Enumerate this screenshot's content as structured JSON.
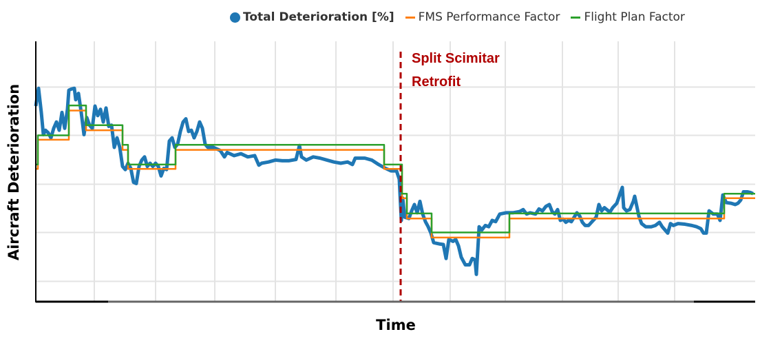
{
  "chart_data": {
    "type": "line",
    "title": "",
    "xlabel": "Time",
    "ylabel": "Aircraft Deterioration",
    "xlim": [
      0,
      1045
    ],
    "ylim": [
      -32,
      378
    ],
    "x_gridlines": [
      85,
      174,
      260,
      348,
      436,
      519,
      602,
      682,
      765,
      846,
      928
    ],
    "y_gridlines": [
      0,
      77,
      153,
      230,
      306
    ],
    "tick_labels_shown": false,
    "grid": true,
    "legend_position": "top-right",
    "annotation": {
      "lines": [
        "Split Scimitar",
        "Retrofit"
      ],
      "x": 530,
      "color": "#b00000",
      "style": "dashed vertical line"
    },
    "series": [
      {
        "name": "Total Deterioration [%]",
        "color": "#1f77b4",
        "points": [
          [
            0,
            276
          ],
          [
            4,
            304
          ],
          [
            8,
            266
          ],
          [
            11,
            231
          ],
          [
            14,
            238
          ],
          [
            18,
            234
          ],
          [
            22,
            226
          ],
          [
            26,
            241
          ],
          [
            30,
            251
          ],
          [
            34,
            238
          ],
          [
            38,
            266
          ],
          [
            42,
            241
          ],
          [
            46,
            271
          ],
          [
            48,
            301
          ],
          [
            52,
            303
          ],
          [
            56,
            304
          ],
          [
            58,
            286
          ],
          [
            62,
            296
          ],
          [
            66,
            266
          ],
          [
            70,
            231
          ],
          [
            74,
            258
          ],
          [
            78,
            246
          ],
          [
            82,
            241
          ],
          [
            86,
            276
          ],
          [
            90,
            261
          ],
          [
            94,
            271
          ],
          [
            98,
            251
          ],
          [
            102,
            273
          ],
          [
            106,
            244
          ],
          [
            110,
            246
          ],
          [
            114,
            211
          ],
          [
            118,
            226
          ],
          [
            122,
            211
          ],
          [
            126,
            181
          ],
          [
            130,
            176
          ],
          [
            134,
            186
          ],
          [
            138,
            178
          ],
          [
            142,
            156
          ],
          [
            146,
            154
          ],
          [
            150,
            181
          ],
          [
            154,
            191
          ],
          [
            158,
            196
          ],
          [
            162,
            181
          ],
          [
            166,
            186
          ],
          [
            170,
            181
          ],
          [
            174,
            186
          ],
          [
            178,
            181
          ],
          [
            182,
            166
          ],
          [
            186,
            178
          ],
          [
            190,
            176
          ],
          [
            194,
            221
          ],
          [
            198,
            226
          ],
          [
            202,
            211
          ],
          [
            206,
            216
          ],
          [
            210,
            236
          ],
          [
            214,
            251
          ],
          [
            218,
            256
          ],
          [
            222,
            236
          ],
          [
            226,
            238
          ],
          [
            230,
            226
          ],
          [
            234,
            236
          ],
          [
            238,
            251
          ],
          [
            242,
            241
          ],
          [
            246,
            216
          ],
          [
            250,
            211
          ],
          [
            258,
            211
          ],
          [
            268,
            206
          ],
          [
            274,
            196
          ],
          [
            278,
            203
          ],
          [
            288,
            198
          ],
          [
            298,
            201
          ],
          [
            308,
            196
          ],
          [
            318,
            198
          ],
          [
            324,
            183
          ],
          [
            328,
            186
          ],
          [
            338,
            188
          ],
          [
            348,
            191
          ],
          [
            358,
            190
          ],
          [
            368,
            190
          ],
          [
            378,
            192
          ],
          [
            383,
            214
          ],
          [
            386,
            196
          ],
          [
            393,
            191
          ],
          [
            403,
            196
          ],
          [
            413,
            194
          ],
          [
            423,
            191
          ],
          [
            433,
            188
          ],
          [
            443,
            186
          ],
          [
            453,
            188
          ],
          [
            460,
            184
          ],
          [
            464,
            194
          ],
          [
            478,
            194
          ],
          [
            488,
            191
          ],
          [
            498,
            184
          ],
          [
            508,
            178
          ],
          [
            516,
            174
          ],
          [
            524,
            174
          ],
          [
            528,
            161
          ],
          [
            531,
            96
          ],
          [
            533,
            131
          ],
          [
            536,
            101
          ],
          [
            542,
            99
          ],
          [
            546,
            111
          ],
          [
            550,
            121
          ],
          [
            554,
            108
          ],
          [
            558,
            126
          ],
          [
            562,
            106
          ],
          [
            566,
            94
          ],
          [
            570,
            86
          ],
          [
            574,
            76
          ],
          [
            578,
            61
          ],
          [
            586,
            59
          ],
          [
            592,
            58
          ],
          [
            596,
            36
          ],
          [
            600,
            66
          ],
          [
            606,
            63
          ],
          [
            610,
            66
          ],
          [
            614,
            56
          ],
          [
            618,
            38
          ],
          [
            624,
            26
          ],
          [
            630,
            26
          ],
          [
            634,
            36
          ],
          [
            638,
            34
          ],
          [
            640,
            11
          ],
          [
            644,
            86
          ],
          [
            648,
            81
          ],
          [
            653,
            88
          ],
          [
            658,
            86
          ],
          [
            663,
            96
          ],
          [
            668,
            94
          ],
          [
            674,
            106
          ],
          [
            683,
            108
          ],
          [
            693,
            108
          ],
          [
            703,
            110
          ],
          [
            708,
            113
          ],
          [
            713,
            106
          ],
          [
            718,
            108
          ],
          [
            726,
            106
          ],
          [
            731,
            114
          ],
          [
            736,
            111
          ],
          [
            741,
            118
          ],
          [
            746,
            121
          ],
          [
            750,
            110
          ],
          [
            754,
            106
          ],
          [
            758,
            113
          ],
          [
            762,
            96
          ],
          [
            766,
            98
          ],
          [
            770,
            93
          ],
          [
            774,
            96
          ],
          [
            778,
            94
          ],
          [
            782,
            101
          ],
          [
            786,
            108
          ],
          [
            790,
            103
          ],
          [
            794,
            93
          ],
          [
            798,
            88
          ],
          [
            803,
            88
          ],
          [
            808,
            94
          ],
          [
            814,
            101
          ],
          [
            818,
            121
          ],
          [
            822,
            111
          ],
          [
            826,
            116
          ],
          [
            834,
            109
          ],
          [
            838,
            116
          ],
          [
            844,
            123
          ],
          [
            848,
            136
          ],
          [
            852,
            148
          ],
          [
            854,
            116
          ],
          [
            858,
            111
          ],
          [
            863,
            113
          ],
          [
            868,
            126
          ],
          [
            870,
            134
          ],
          [
            876,
            103
          ],
          [
            880,
            91
          ],
          [
            886,
            86
          ],
          [
            894,
            86
          ],
          [
            900,
            88
          ],
          [
            906,
            93
          ],
          [
            910,
            86
          ],
          [
            914,
            81
          ],
          [
            918,
            76
          ],
          [
            922,
            91
          ],
          [
            926,
            88
          ],
          [
            933,
            91
          ],
          [
            943,
            90
          ],
          [
            953,
            88
          ],
          [
            960,
            86
          ],
          [
            966,
            83
          ],
          [
            970,
            76
          ],
          [
            974,
            76
          ],
          [
            978,
            111
          ],
          [
            984,
            106
          ],
          [
            990,
            106
          ],
          [
            994,
            96
          ],
          [
            998,
            136
          ],
          [
            1003,
            124
          ],
          [
            1010,
            123
          ],
          [
            1016,
            121
          ],
          [
            1020,
            123
          ],
          [
            1024,
            128
          ],
          [
            1028,
            141
          ],
          [
            1034,
            141
          ],
          [
            1038,
            140
          ],
          [
            1042,
            138
          ]
        ]
      },
      {
        "name": "FMS Performance Factor",
        "color": "#ff7f0e",
        "step": true,
        "points": [
          [
            0,
            177
          ],
          [
            3,
            223
          ],
          [
            48,
            269
          ],
          [
            73,
            238
          ],
          [
            126,
            207
          ],
          [
            134,
            177
          ],
          [
            203,
            207
          ],
          [
            506,
            177
          ],
          [
            532,
            131
          ],
          [
            539,
            99
          ],
          [
            575,
            69
          ],
          [
            688,
            99
          ],
          [
            1000,
            131
          ],
          [
            1045,
            131
          ]
        ]
      },
      {
        "name": "Flight Plan Factor",
        "color": "#2ca02c",
        "step": true,
        "points": [
          [
            0,
            184
          ],
          [
            3,
            230
          ],
          [
            48,
            277
          ],
          [
            73,
            246
          ],
          [
            126,
            215
          ],
          [
            134,
            184
          ],
          [
            203,
            215
          ],
          [
            506,
            184
          ],
          [
            532,
            138
          ],
          [
            539,
            107
          ],
          [
            575,
            77
          ],
          [
            688,
            107
          ],
          [
            1000,
            138
          ],
          [
            1045,
            138
          ]
        ]
      }
    ]
  }
}
